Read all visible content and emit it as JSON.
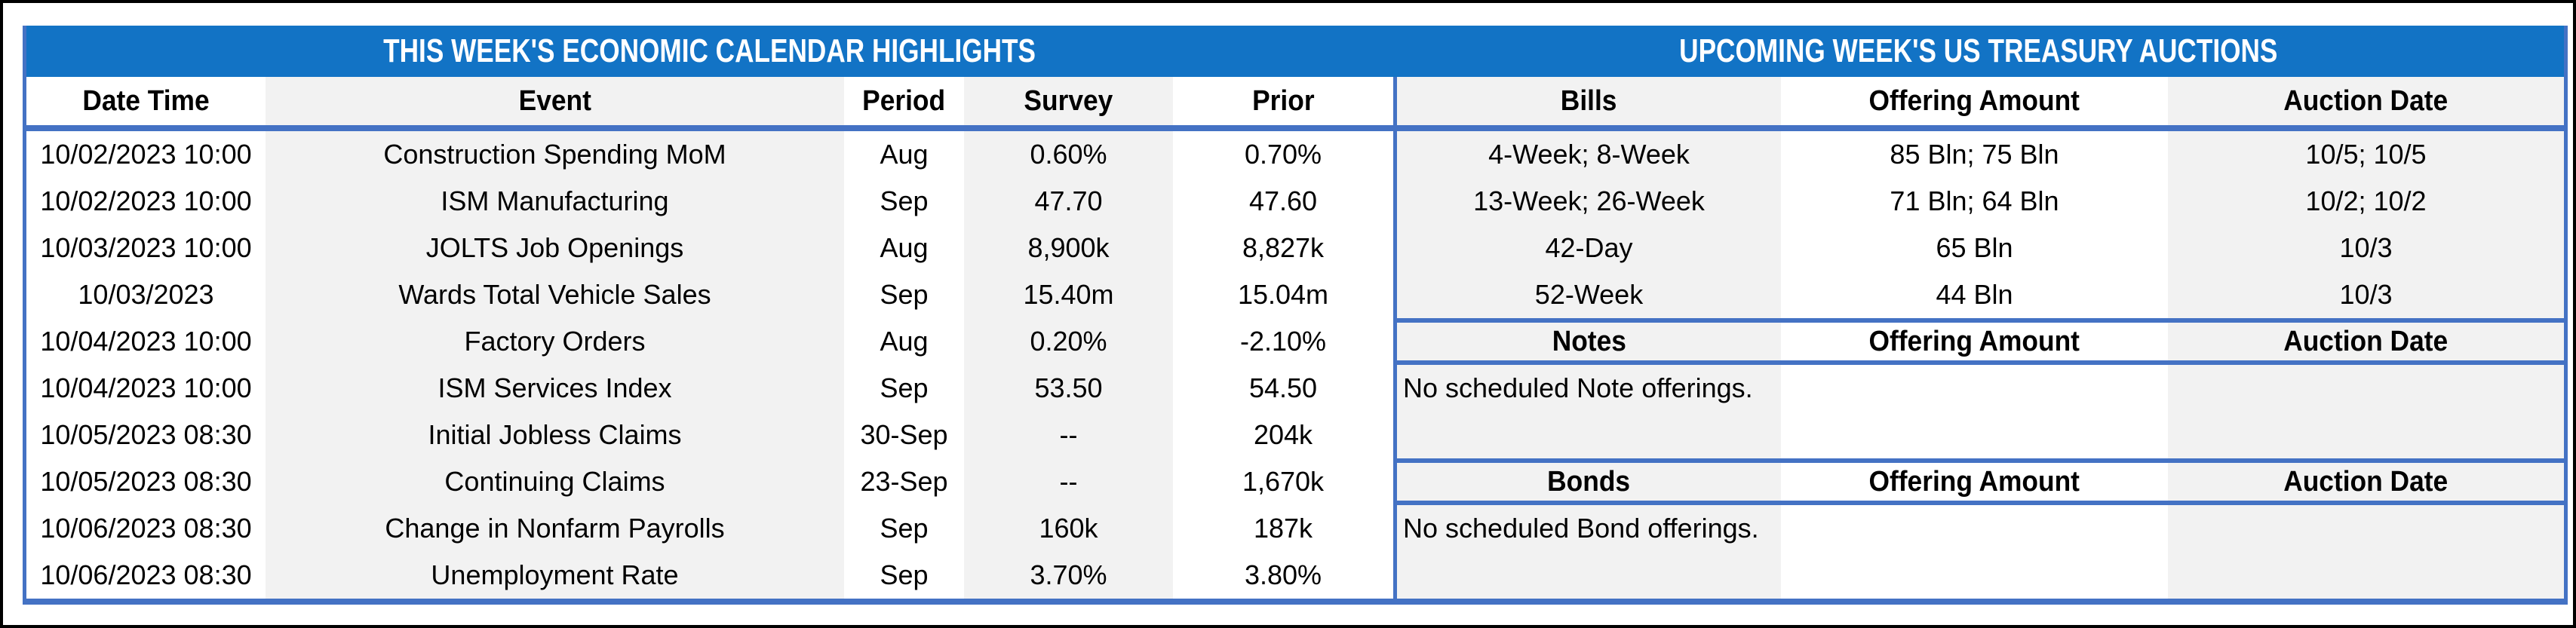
{
  "colors": {
    "band_blue": "#1273C5",
    "border_blue": "#4472C4",
    "column_gray": "#F2F2F2",
    "text": "#000000",
    "title_text": "#FFFFFF",
    "outer_border": "#000000"
  },
  "titles": {
    "left": "THIS WEEK'S ECONOMIC CALENDAR HIGHLIGHTS",
    "right": "UPCOMING WEEK'S US TREASURY AUCTIONS"
  },
  "calendar": {
    "headers": {
      "date": "Date Time",
      "event": "Event",
      "period": "Period",
      "survey": "Survey",
      "prior": "Prior"
    },
    "rows": [
      {
        "date": "10/02/2023 10:00",
        "event": "Construction Spending MoM",
        "period": "Aug",
        "survey": "0.60%",
        "prior": "0.70%"
      },
      {
        "date": "10/02/2023 10:00",
        "event": "ISM Manufacturing",
        "period": "Sep",
        "survey": "47.70",
        "prior": "47.60"
      },
      {
        "date": "10/03/2023 10:00",
        "event": "JOLTS Job Openings",
        "period": "Aug",
        "survey": "8,900k",
        "prior": "8,827k"
      },
      {
        "date": "10/03/2023",
        "event": "Wards Total Vehicle Sales",
        "period": "Sep",
        "survey": "15.40m",
        "prior": "15.04m"
      },
      {
        "date": "10/04/2023 10:00",
        "event": "Factory Orders",
        "period": "Aug",
        "survey": "0.20%",
        "prior": "-2.10%"
      },
      {
        "date": "10/04/2023 10:00",
        "event": "ISM Services Index",
        "period": "Sep",
        "survey": "53.50",
        "prior": "54.50"
      },
      {
        "date": "10/05/2023 08:30",
        "event": "Initial Jobless Claims",
        "period": "30-Sep",
        "survey": "--",
        "prior": "204k"
      },
      {
        "date": "10/05/2023 08:30",
        "event": "Continuing Claims",
        "period": "23-Sep",
        "survey": "--",
        "prior": "1,670k"
      },
      {
        "date": "10/06/2023 08:30",
        "event": "Change in Nonfarm Payrolls",
        "period": "Sep",
        "survey": "160k",
        "prior": "187k"
      },
      {
        "date": "10/06/2023 08:30",
        "event": "Unemployment Rate",
        "period": "Sep",
        "survey": "3.70%",
        "prior": "3.80%"
      }
    ]
  },
  "auctions": {
    "bills": {
      "headers": {
        "type": "Bills",
        "amount": "Offering Amount",
        "date": "Auction Date"
      },
      "rows": [
        {
          "type": "4-Week; 8-Week",
          "amount": "85 Bln; 75 Bln",
          "date": "10/5; 10/5"
        },
        {
          "type": "13-Week; 26-Week",
          "amount": "71 Bln; 64 Bln",
          "date": "10/2; 10/2"
        },
        {
          "type": "42-Day",
          "amount": "65 Bln",
          "date": "10/3"
        },
        {
          "type": "52-Week",
          "amount": "44 Bln",
          "date": "10/3"
        }
      ]
    },
    "notes": {
      "headers": {
        "type": "Notes",
        "amount": "Offering Amount",
        "date": "Auction Date"
      },
      "message": "No scheduled Note offerings."
    },
    "bonds": {
      "headers": {
        "type": "Bonds",
        "amount": "Offering Amount",
        "date": "Auction Date"
      },
      "message": "No scheduled Bond offerings."
    }
  }
}
